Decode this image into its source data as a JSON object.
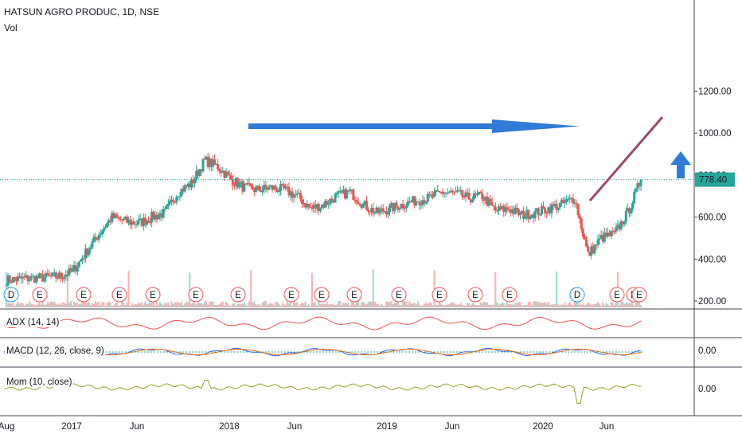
{
  "header": {
    "title": "HATSUN AGRO PRODUC, 1D, NSE",
    "volume_label": "Vol"
  },
  "price_axis": {
    "ticks": [
      "1200.00",
      "1000.00",
      "800.00",
      "600.00",
      "400.00",
      "200.00"
    ]
  },
  "price_tag": {
    "value": "778.40",
    "color": "#26a69a"
  },
  "indicators": [
    {
      "label": "ADX (14, 14)",
      "axis_tick": ""
    },
    {
      "label": "MACD (12, 26, close, 9)",
      "axis_tick": "0.00"
    },
    {
      "label": "Mom (10, close)",
      "axis_tick": "0.00"
    }
  ],
  "time_axis": {
    "ticks": [
      "Aug",
      "2017",
      "Jun",
      "2018",
      "Jun",
      "2019",
      "Jun",
      "2020",
      "Jun"
    ]
  },
  "event_markers": [
    "D",
    "E",
    "E",
    "E",
    "E",
    "E",
    "E",
    "E",
    "E",
    "E",
    "E",
    "E",
    "E",
    "E",
    "D",
    "E",
    "E",
    "E"
  ],
  "colors": {
    "up": "#26a69a",
    "down": "#ef5350",
    "adx": "#ef5350",
    "mom": "#9aa026",
    "trend_arrow": "#2f7bd6",
    "trendline": "#a0466c"
  },
  "chart_data": {
    "type": "line",
    "title": "HATSUN AGRO PRODUC, 1D, NSE",
    "ylim": [
      130,
      1380
    ],
    "last_price": 778.4,
    "x": [
      "2016-08",
      "2016-09",
      "2016-10",
      "2016-11",
      "2016-12",
      "2017-01",
      "2017-02",
      "2017-03",
      "2017-04",
      "2017-05",
      "2017-06",
      "2017-07",
      "2017-08",
      "2017-09",
      "2017-10",
      "2017-11",
      "2017-12",
      "2018-01",
      "2018-02",
      "2018-03",
      "2018-04",
      "2018-05",
      "2018-06",
      "2018-07",
      "2018-08",
      "2018-09",
      "2018-10",
      "2018-11",
      "2018-12",
      "2019-01",
      "2019-02",
      "2019-03",
      "2019-04",
      "2019-05",
      "2019-06",
      "2019-07",
      "2019-08",
      "2019-09",
      "2019-10",
      "2019-11",
      "2019-12",
      "2020-01",
      "2020-02",
      "2020-03",
      "2020-04",
      "2020-05",
      "2020-06",
      "2020-07",
      "2020-08"
    ],
    "series": [
      {
        "values": [
          300,
          305,
          310,
          312,
          318,
          340,
          430,
          520,
          600,
          580,
          570,
          600,
          620,
          720,
          760,
          870,
          840,
          780,
          740,
          730,
          740,
          730,
          700,
          640,
          660,
          700,
          720,
          660,
          620,
          640,
          660,
          680,
          690,
          720,
          710,
          690,
          700,
          630,
          640,
          610,
          620,
          640,
          660,
          690,
          420,
          500,
          520,
          620,
          778
        ]
      }
    ]
  }
}
